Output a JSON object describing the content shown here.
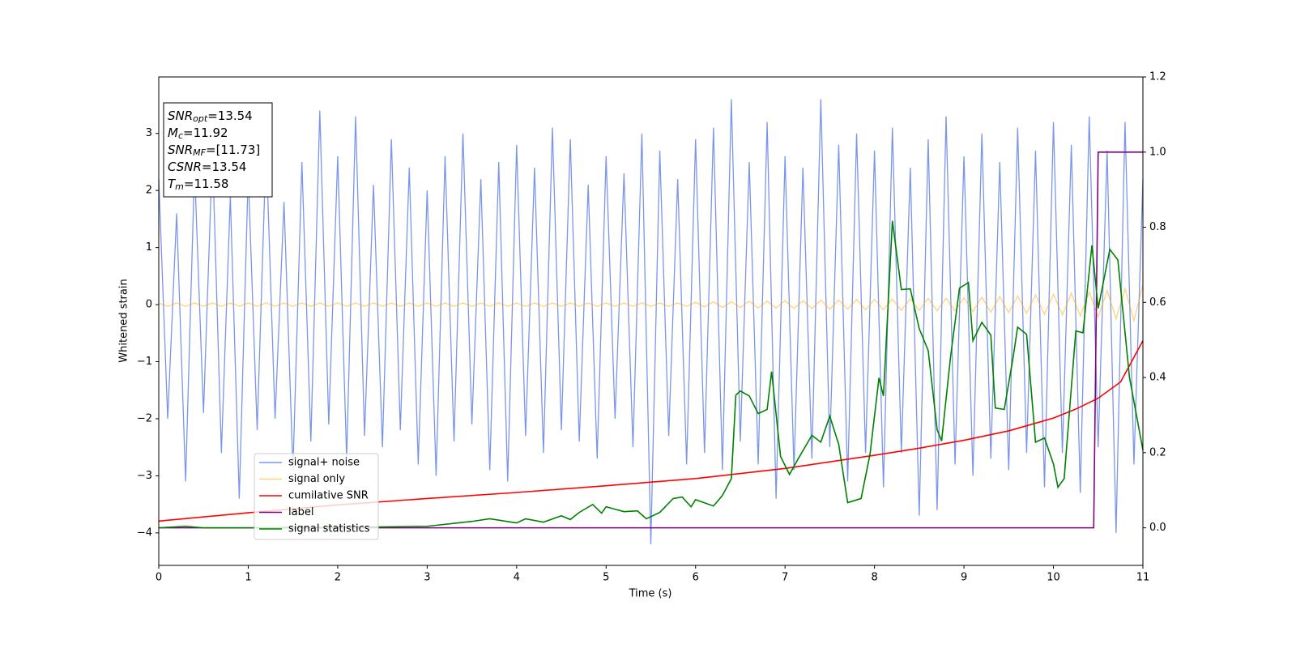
{
  "chart_data": {
    "type": "line",
    "xlabel": "Time (s)",
    "ylabel": "Whitened strain",
    "xlim": [
      0,
      11
    ],
    "ylim": [
      -4.57,
      3.99
    ],
    "y2lim": [
      -0.1,
      1.2
    ],
    "xticks": [
      0,
      1,
      2,
      3,
      4,
      5,
      6,
      7,
      8,
      9,
      10,
      11
    ],
    "yticks": [
      {
        "value": -4,
        "label": "−4"
      },
      {
        "value": -3,
        "label": "−3"
      },
      {
        "value": -2,
        "label": "−2"
      },
      {
        "value": -1,
        "label": "−1"
      },
      0,
      1,
      2,
      3
    ],
    "y2ticks": [
      {
        "value": 0,
        "label": "0.0"
      },
      {
        "value": 0.2,
        "label": "0.2"
      },
      {
        "value": 0.4,
        "label": "0.4"
      },
      {
        "value": 0.6,
        "label": "0.6"
      },
      {
        "value": 0.8,
        "label": "0.8"
      },
      {
        "value": 1,
        "label": "1.0"
      },
      {
        "value": 1.2,
        "label": "1.2"
      }
    ],
    "series": [
      {
        "name": "signal+ noise",
        "color": "#7b96e8",
        "x": [
          0,
          0.1,
          0.2,
          0.3,
          0.4,
          0.5,
          0.6,
          0.7,
          0.8,
          0.9,
          1,
          1.1,
          1.2,
          1.3,
          1.4,
          1.5,
          1.6,
          1.7,
          1.8,
          1.9,
          2,
          2.1,
          2.2,
          2.3,
          2.4,
          2.5,
          2.6,
          2.7,
          2.8,
          2.9,
          3,
          3.1,
          3.2,
          3.3,
          3.4,
          3.5,
          3.6,
          3.7,
          3.8,
          3.9,
          4,
          4.1,
          4.2,
          4.3,
          4.4,
          4.5,
          4.6,
          4.7,
          4.8,
          4.9,
          5,
          5.1,
          5.2,
          5.3,
          5.4,
          5.5,
          5.6,
          5.7,
          5.8,
          5.9,
          6,
          6.1,
          6.2,
          6.3,
          6.4,
          6.5,
          6.6,
          6.7,
          6.8,
          6.9,
          7,
          7.1,
          7.2,
          7.3,
          7.4,
          7.5,
          7.6,
          7.7,
          7.8,
          7.9,
          8,
          8.1,
          8.2,
          8.3,
          8.4,
          8.5,
          8.6,
          8.7,
          8.8,
          8.9,
          9,
          9.1,
          9.2,
          9.3,
          9.4,
          9.5,
          9.6,
          9.7,
          9.8,
          9.9,
          10,
          10.1,
          10.2,
          10.3,
          10.4,
          10.5,
          10.6,
          10.7,
          10.8,
          10.9,
          11
        ],
        "values": [
          2.2,
          -2.0,
          1.6,
          -3.1,
          2.4,
          -1.9,
          2.7,
          -2.6,
          1.9,
          -3.4,
          2.3,
          -2.2,
          2.8,
          -2.0,
          1.8,
          -2.9,
          2.5,
          -2.4,
          3.4,
          -2.1,
          2.6,
          -2.7,
          3.3,
          -2.3,
          2.1,
          -2.5,
          2.9,
          -2.2,
          2.4,
          -2.8,
          2.0,
          -3.0,
          2.6,
          -2.4,
          3.0,
          -2.1,
          2.2,
          -2.9,
          2.5,
          -3.1,
          2.8,
          -2.3,
          2.4,
          -2.6,
          3.1,
          -2.2,
          2.9,
          -2.4,
          2.1,
          -2.7,
          2.6,
          -2.0,
          2.3,
          -2.5,
          3.0,
          -4.2,
          2.7,
          -2.3,
          2.2,
          -2.8,
          2.9,
          -2.6,
          3.1,
          -2.9,
          3.6,
          -2.4,
          2.5,
          -2.8,
          3.2,
          -3.4,
          2.6,
          -2.9,
          2.4,
          -2.7,
          3.6,
          -2.5,
          2.8,
          -3.1,
          3.0,
          -2.6,
          2.7,
          -3.2,
          3.1,
          -2.6,
          2.4,
          -3.7,
          2.9,
          -3.6,
          3.3,
          -2.8,
          2.6,
          -3.0,
          3.0,
          -2.7,
          2.5,
          -2.9,
          3.1,
          -2.6,
          2.7,
          -3.2,
          3.2,
          -2.6,
          2.8,
          -3.3,
          3.3,
          -2.5,
          2.7,
          -4.0,
          3.2,
          -2.8,
          2.2
        ]
      },
      {
        "name": "signal only",
        "color": "#ffa500",
        "opacity": 0.5,
        "x": [
          0,
          0.1,
          0.2,
          0.3,
          0.4,
          0.5,
          0.6,
          0.7,
          0.8,
          0.9,
          1,
          1.1,
          1.2,
          1.3,
          1.4,
          1.5,
          1.6,
          1.7,
          1.8,
          1.9,
          2,
          2.1,
          2.2,
          2.3,
          2.4,
          2.5,
          2.6,
          2.7,
          2.8,
          2.9,
          3,
          3.1,
          3.2,
          3.3,
          3.4,
          3.5,
          3.6,
          3.7,
          3.8,
          3.9,
          4,
          4.1,
          4.2,
          4.3,
          4.4,
          4.5,
          4.6,
          4.7,
          4.8,
          4.9,
          5,
          5.1,
          5.2,
          5.3,
          5.4,
          5.5,
          5.6,
          5.7,
          5.8,
          5.9,
          6,
          6.1,
          6.2,
          6.3,
          6.4,
          6.5,
          6.6,
          6.7,
          6.8,
          6.9,
          7,
          7.1,
          7.2,
          7.3,
          7.4,
          7.5,
          7.6,
          7.7,
          7.8,
          7.9,
          8,
          8.1,
          8.2,
          8.3,
          8.4,
          8.5,
          8.6,
          8.7,
          8.8,
          8.9,
          9,
          9.1,
          9.2,
          9.3,
          9.4,
          9.5,
          9.6,
          9.7,
          9.8,
          9.9,
          10,
          10.1,
          10.2,
          10.3,
          10.4,
          10.5,
          10.6,
          10.7,
          10.8,
          10.9,
          11
        ],
        "values": [
          0.03,
          -0.03,
          0.03,
          -0.03,
          0.03,
          -0.03,
          0.03,
          -0.03,
          0.03,
          -0.03,
          0.03,
          -0.03,
          0.03,
          -0.03,
          0.03,
          -0.03,
          0.03,
          -0.03,
          0.03,
          -0.03,
          0.03,
          -0.03,
          0.03,
          -0.03,
          0.03,
          -0.03,
          0.03,
          -0.03,
          0.03,
          -0.03,
          0.03,
          -0.03,
          0.03,
          -0.03,
          0.03,
          -0.03,
          0.03,
          -0.03,
          0.03,
          -0.03,
          0.03,
          -0.03,
          0.03,
          -0.03,
          0.03,
          -0.03,
          0.03,
          -0.03,
          0.03,
          -0.03,
          0.03,
          -0.03,
          0.03,
          -0.03,
          0.03,
          -0.03,
          0.03,
          -0.03,
          0.03,
          -0.03,
          0.04,
          -0.04,
          0.05,
          -0.05,
          0.05,
          -0.05,
          0.06,
          -0.06,
          0.06,
          -0.06,
          0.07,
          -0.07,
          0.07,
          -0.07,
          0.08,
          -0.08,
          0.08,
          -0.08,
          0.09,
          -0.09,
          0.09,
          -0.09,
          0.1,
          -0.1,
          0.1,
          -0.1,
          0.11,
          -0.11,
          0.11,
          -0.11,
          0.12,
          -0.12,
          0.13,
          -0.13,
          0.14,
          -0.14,
          0.15,
          -0.15,
          0.17,
          -0.17,
          0.18,
          -0.18,
          0.2,
          -0.2,
          0.22,
          -0.22,
          0.25,
          -0.25,
          0.28,
          -0.28,
          0.35
        ]
      },
      {
        "name": "cumilative SNR",
        "color": "#ff0000",
        "axis": "y2",
        "x": [
          0,
          1,
          2,
          3,
          4,
          5,
          6,
          7,
          8,
          8.5,
          9,
          9.5,
          10,
          10.25,
          10.5,
          10.75,
          11
        ],
        "values": [
          0.018,
          0.04,
          0.061,
          0.078,
          0.094,
          0.112,
          0.131,
          0.158,
          0.193,
          0.212,
          0.233,
          0.258,
          0.292,
          0.316,
          0.345,
          0.388,
          0.498
        ]
      },
      {
        "name": "label",
        "color": "#800080",
        "axis": "y2",
        "x": [
          0,
          10.45,
          10.5,
          11
        ],
        "values": [
          0,
          0,
          1,
          1
        ]
      },
      {
        "name": "signal statistics",
        "color": "#008000",
        "axis": "y2",
        "x": [
          0,
          0.3,
          0.5,
          1,
          2,
          3,
          3.5,
          3.7,
          4,
          4.1,
          4.3,
          4.5,
          4.6,
          4.7,
          4.85,
          4.95,
          5,
          5.2,
          5.35,
          5.45,
          5.6,
          5.75,
          5.85,
          5.95,
          6,
          6.2,
          6.3,
          6.4,
          6.45,
          6.5,
          6.6,
          6.7,
          6.8,
          6.85,
          6.95,
          7.05,
          7.15,
          7.3,
          7.4,
          7.5,
          7.6,
          7.7,
          7.85,
          7.95,
          8.05,
          8.1,
          8.2,
          8.3,
          8.4,
          8.5,
          8.6,
          8.7,
          8.75,
          8.85,
          8.95,
          9.05,
          9.1,
          9.2,
          9.3,
          9.35,
          9.45,
          9.55,
          9.6,
          9.7,
          9.8,
          9.9,
          10,
          10.05,
          10.12,
          10.25,
          10.33,
          10.43,
          10.5,
          10.63,
          10.72,
          10.85,
          11
        ],
        "values": [
          0,
          0.004,
          0,
          0,
          0.001,
          0.004,
          0.017,
          0.024,
          0.013,
          0.024,
          0.015,
          0.032,
          0.022,
          0.041,
          0.062,
          0.039,
          0.056,
          0.043,
          0.045,
          0.024,
          0.041,
          0.078,
          0.082,
          0.056,
          0.075,
          0.058,
          0.086,
          0.131,
          0.353,
          0.364,
          0.351,
          0.304,
          0.315,
          0.416,
          0.19,
          0.142,
          0.185,
          0.246,
          0.228,
          0.297,
          0.222,
          0.067,
          0.078,
          0.196,
          0.399,
          0.351,
          0.817,
          0.634,
          0.636,
          0.53,
          0.472,
          0.261,
          0.231,
          0.455,
          0.638,
          0.653,
          0.498,
          0.547,
          0.513,
          0.319,
          0.315,
          0.455,
          0.534,
          0.515,
          0.228,
          0.239,
          0.17,
          0.108,
          0.131,
          0.524,
          0.519,
          0.752,
          0.584,
          0.741,
          0.713,
          0.4,
          0.207
        ]
      }
    ],
    "annotation": [
      {
        "symbol": "SNR",
        "sub": "opt",
        "text": "=13.54"
      },
      {
        "symbol": "M",
        "sub": "c",
        "text": "=11.92"
      },
      {
        "symbol": "SNR",
        "sub": "MF",
        "text": "=[11.73]"
      },
      {
        "symbol": "CSNR",
        "text": "=13.54"
      },
      {
        "symbol": "T",
        "sub": "m",
        "text": "=11.58"
      }
    ]
  }
}
